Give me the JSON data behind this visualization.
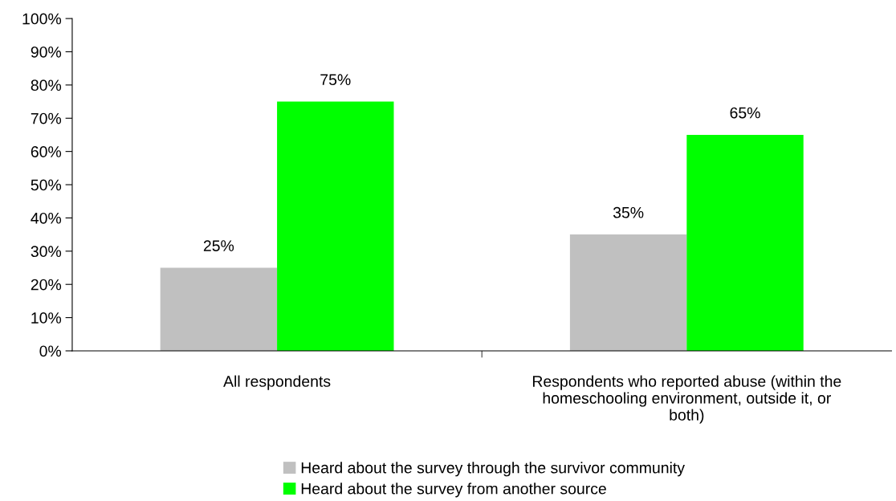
{
  "chart_data": {
    "type": "bar",
    "categories": [
      "All respondents",
      "Respondents who reported abuse (within the\nhomeschooling environment, outside it, or\nboth)"
    ],
    "series": [
      {
        "name": "Heard about the survey through the survivor community",
        "color": "#c0c0c0",
        "values": [
          25,
          35
        ],
        "value_labels": [
          "25%",
          "35%"
        ]
      },
      {
        "name": "Heard about the survey from another source",
        "color": "#00ff00",
        "values": [
          75,
          65
        ],
        "value_labels": [
          "75%",
          "65%"
        ]
      }
    ],
    "ylim": [
      0,
      100
    ],
    "yticks": [
      {
        "value": 0,
        "label": "0%"
      },
      {
        "value": 10,
        "label": "10%"
      },
      {
        "value": 20,
        "label": "20%"
      },
      {
        "value": 30,
        "label": "30%"
      },
      {
        "value": 40,
        "label": "40%"
      },
      {
        "value": 50,
        "label": "50%"
      },
      {
        "value": 60,
        "label": "60%"
      },
      {
        "value": 70,
        "label": "70%"
      },
      {
        "value": 80,
        "label": "80%"
      },
      {
        "value": 90,
        "label": "90%"
      },
      {
        "value": 100,
        "label": "100%"
      }
    ],
    "grid": false,
    "legend": "bottom"
  }
}
